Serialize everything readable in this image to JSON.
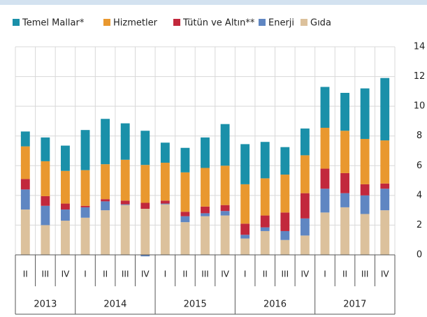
{
  "chart_data": {
    "type": "stacked-bar",
    "groups": [
      {
        "label": "2013",
        "quarters": [
          "II",
          "III",
          "IV"
        ]
      },
      {
        "label": "2014",
        "quarters": [
          "I",
          "II",
          "III",
          "IV"
        ]
      },
      {
        "label": "2015",
        "quarters": [
          "I",
          "II",
          "III",
          "IV"
        ]
      },
      {
        "label": "2016",
        "quarters": [
          "I",
          "II",
          "III",
          "IV"
        ]
      },
      {
        "label": "2017",
        "quarters": [
          "I",
          "II",
          "III",
          "IV"
        ]
      }
    ],
    "series": [
      {
        "name": "Gıda",
        "color": "#dcc19c",
        "values": [
          3.05,
          2.0,
          2.3,
          2.5,
          3.0,
          3.35,
          3.1,
          3.4,
          2.2,
          2.6,
          2.65,
          1.1,
          1.6,
          1.0,
          1.3,
          2.85,
          3.2,
          2.75,
          3.0
        ]
      },
      {
        "name": "Enerji",
        "color": "#5f86c2",
        "values": [
          1.35,
          1.3,
          0.75,
          0.7,
          0.6,
          0.05,
          -0.1,
          0.05,
          0.4,
          0.2,
          0.3,
          0.25,
          0.25,
          0.6,
          1.15,
          1.6,
          0.95,
          1.25,
          1.45
        ]
      },
      {
        "name": "Tütün ve Altın**",
        "color": "#c2283c",
        "values": [
          0.7,
          0.65,
          0.4,
          0.1,
          0.15,
          0.25,
          0.4,
          0.2,
          0.3,
          0.45,
          0.4,
          0.75,
          0.8,
          1.25,
          1.7,
          1.35,
          1.35,
          0.75,
          0.35
        ]
      },
      {
        "name": "Hizmetler",
        "color": "#e9982f",
        "values": [
          2.2,
          2.35,
          2.2,
          2.4,
          2.35,
          2.75,
          2.55,
          2.55,
          2.65,
          2.6,
          2.65,
          2.65,
          2.5,
          2.55,
          2.55,
          2.75,
          2.85,
          3.05,
          2.9
        ]
      },
      {
        "name": "Temel Mallar*",
        "color": "#1a90a9",
        "values": [
          1.0,
          1.6,
          1.7,
          2.7,
          3.05,
          2.45,
          2.3,
          1.35,
          1.65,
          2.05,
          2.8,
          2.7,
          2.45,
          1.85,
          1.8,
          2.75,
          2.55,
          3.4,
          4.2
        ]
      }
    ],
    "legend_order": [
      4,
      3,
      2,
      1,
      0
    ],
    "ylim": [
      0,
      14
    ],
    "yticks": [
      0,
      2,
      4,
      6,
      8,
      10,
      12,
      14
    ],
    "grid": true
  }
}
